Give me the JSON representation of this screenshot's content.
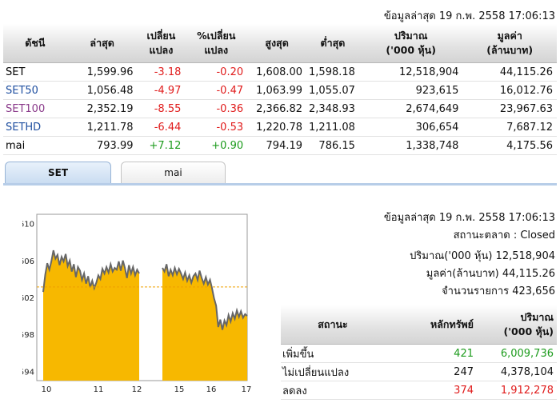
{
  "header": {
    "timestamp": "ข้อมูลล่าสุด 19 ก.พ. 2558 17:06:13"
  },
  "index_table": {
    "columns": [
      "ดัชนี",
      "ล่าสุด",
      "เปลี่ยน\nแปลง",
      "%เปลี่ยน\nแปลง",
      "สูงสุด",
      "ต่ำสุด",
      "ปริมาณ\n('000 หุ้น)",
      "มูลค่า\n(ล้านบาท)"
    ],
    "rows": [
      {
        "name": "SET",
        "last": "1,599.96",
        "chg": "-3.18",
        "pct": "-0.20",
        "high": "1,608.00",
        "low": "1,598.18",
        "vol": "12,518,904",
        "val": "44,115.26",
        "color": "#000000"
      },
      {
        "name": "SET50",
        "last": "1,056.48",
        "chg": "-4.97",
        "pct": "-0.47",
        "high": "1,063.99",
        "low": "1,055.07",
        "vol": "923,615",
        "val": "16,012.76",
        "color": "#1f4fa0"
      },
      {
        "name": "SET100",
        "last": "2,352.19",
        "chg": "-8.55",
        "pct": "-0.36",
        "high": "2,366.82",
        "low": "2,348.93",
        "vol": "2,674,649",
        "val": "23,967.63",
        "color": "#8a3a8a"
      },
      {
        "name": "SETHD",
        "last": "1,211.78",
        "chg": "-6.44",
        "pct": "-0.53",
        "high": "1,220.78",
        "low": "1,211.08",
        "vol": "306,654",
        "val": "7,687.12",
        "color": "#1f4fa0"
      },
      {
        "name": "mai",
        "last": "793.99",
        "chg": "+7.12",
        "pct": "+0.90",
        "high": "794.19",
        "low": "786.15",
        "vol": "1,338,748",
        "val": "4,175.56",
        "color": "#000000"
      }
    ]
  },
  "tabs": [
    {
      "label": "SET",
      "active": true
    },
    {
      "label": "mai",
      "active": false
    }
  ],
  "chart_data": {
    "type": "area",
    "x_ticks": [
      "10",
      "11",
      "12",
      "15",
      "16",
      "17"
    ],
    "y_ticks": [
      1594,
      1598,
      1602,
      1606,
      1610
    ],
    "ylim": [
      1593,
      1611
    ],
    "prev_close": 1603.14,
    "fill_color": "#f7b800",
    "line_color": "#666666",
    "session1": [
      1602.6,
      1604.5,
      1605.7,
      1605.0,
      1605.9,
      1607.1,
      1606.2,
      1606.6,
      1605.5,
      1606.4,
      1605.9,
      1606.7,
      1605.4,
      1606.0,
      1604.8,
      1605.6,
      1604.2,
      1605.3,
      1604.9,
      1603.9,
      1604.6,
      1603.5,
      1604.3,
      1603.1,
      1603.8,
      1603.0,
      1603.6,
      1604.4,
      1604.0,
      1605.1,
      1604.6,
      1605.3,
      1604.7,
      1605.6,
      1604.8,
      1605.2,
      1605.0,
      1605.9,
      1604.9,
      1606.0,
      1605.2,
      1604.1,
      1605.5,
      1604.6,
      1605.3,
      1604.4,
      1605.0,
      1604.6
    ],
    "session2": [
      1605.2,
      1604.8,
      1605.6,
      1604.3,
      1605.0,
      1604.4,
      1605.2,
      1604.5,
      1605.1,
      1604.6,
      1604.0,
      1604.7,
      1603.8,
      1604.4,
      1603.6,
      1604.3,
      1604.6,
      1603.9,
      1604.9,
      1604.1,
      1603.5,
      1604.2,
      1603.4,
      1603.9,
      1603.0,
      1601.9,
      1601.1,
      1598.8,
      1599.6,
      1598.5,
      1599.5,
      1599.0,
      1600.1,
      1599.4,
      1600.3,
      1599.7,
      1600.6,
      1599.9,
      1600.5,
      1599.8,
      1600.2,
      1600.0
    ]
  },
  "market_info": {
    "timestamp": "ข้อมูลล่าสุด 19 ก.พ. 2558 17:06:13",
    "status": "สถานะตลาด : Closed",
    "volume": "ปริมาณ('000 หุ้น) 12,518,904",
    "value": "มูลค่า(ล้านบาท) 44,115.26",
    "trades": "จำนวนรายการ 423,656"
  },
  "status_table": {
    "columns": [
      "สถานะ",
      "หลักทรัพย์",
      "ปริมาณ\n('000 หุ้น)"
    ],
    "rows": [
      {
        "status": "เพิ่มขึ้น",
        "count": "421",
        "volume": "6,009,736",
        "tone": "pos"
      },
      {
        "status": "ไม่เปลี่ยนแปลง",
        "count": "247",
        "volume": "4,378,104",
        "tone": "none"
      },
      {
        "status": "ลดลง",
        "count": "374",
        "volume": "1,912,278",
        "tone": "neg"
      }
    ]
  }
}
